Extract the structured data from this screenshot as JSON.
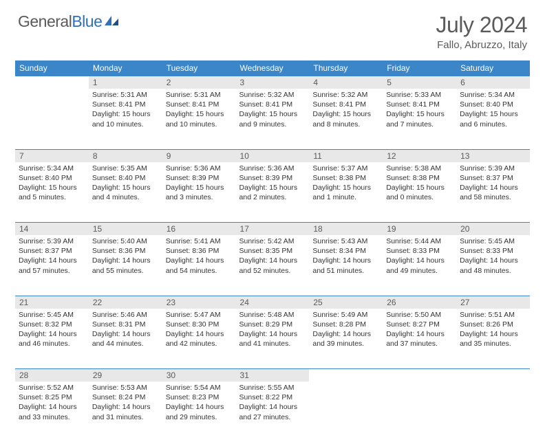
{
  "brand": {
    "part1": "General",
    "part2": "Blue"
  },
  "title": "July 2024",
  "location": "Fallo, Abruzzo, Italy",
  "colors": {
    "header_bg": "#3a86c8",
    "header_text": "#ffffff",
    "daynum_bg": "#e8e8e8",
    "text": "#333333",
    "muted": "#5a5a5a",
    "border": "#3a86c8",
    "brand_blue": "#2f70b8"
  },
  "weekdays": [
    "Sunday",
    "Monday",
    "Tuesday",
    "Wednesday",
    "Thursday",
    "Friday",
    "Saturday"
  ],
  "layout": {
    "first_day_column": 1,
    "days_in_month": 31
  },
  "days": {
    "1": {
      "sunrise": "5:31 AM",
      "sunset": "8:41 PM",
      "daylight": "15 hours and 10 minutes."
    },
    "2": {
      "sunrise": "5:31 AM",
      "sunset": "8:41 PM",
      "daylight": "15 hours and 10 minutes."
    },
    "3": {
      "sunrise": "5:32 AM",
      "sunset": "8:41 PM",
      "daylight": "15 hours and 9 minutes."
    },
    "4": {
      "sunrise": "5:32 AM",
      "sunset": "8:41 PM",
      "daylight": "15 hours and 8 minutes."
    },
    "5": {
      "sunrise": "5:33 AM",
      "sunset": "8:41 PM",
      "daylight": "15 hours and 7 minutes."
    },
    "6": {
      "sunrise": "5:34 AM",
      "sunset": "8:40 PM",
      "daylight": "15 hours and 6 minutes."
    },
    "7": {
      "sunrise": "5:34 AM",
      "sunset": "8:40 PM",
      "daylight": "15 hours and 5 minutes."
    },
    "8": {
      "sunrise": "5:35 AM",
      "sunset": "8:40 PM",
      "daylight": "15 hours and 4 minutes."
    },
    "9": {
      "sunrise": "5:36 AM",
      "sunset": "8:39 PM",
      "daylight": "15 hours and 3 minutes."
    },
    "10": {
      "sunrise": "5:36 AM",
      "sunset": "8:39 PM",
      "daylight": "15 hours and 2 minutes."
    },
    "11": {
      "sunrise": "5:37 AM",
      "sunset": "8:38 PM",
      "daylight": "15 hours and 1 minute."
    },
    "12": {
      "sunrise": "5:38 AM",
      "sunset": "8:38 PM",
      "daylight": "15 hours and 0 minutes."
    },
    "13": {
      "sunrise": "5:39 AM",
      "sunset": "8:37 PM",
      "daylight": "14 hours and 58 minutes."
    },
    "14": {
      "sunrise": "5:39 AM",
      "sunset": "8:37 PM",
      "daylight": "14 hours and 57 minutes."
    },
    "15": {
      "sunrise": "5:40 AM",
      "sunset": "8:36 PM",
      "daylight": "14 hours and 55 minutes."
    },
    "16": {
      "sunrise": "5:41 AM",
      "sunset": "8:36 PM",
      "daylight": "14 hours and 54 minutes."
    },
    "17": {
      "sunrise": "5:42 AM",
      "sunset": "8:35 PM",
      "daylight": "14 hours and 52 minutes."
    },
    "18": {
      "sunrise": "5:43 AM",
      "sunset": "8:34 PM",
      "daylight": "14 hours and 51 minutes."
    },
    "19": {
      "sunrise": "5:44 AM",
      "sunset": "8:33 PM",
      "daylight": "14 hours and 49 minutes."
    },
    "20": {
      "sunrise": "5:45 AM",
      "sunset": "8:33 PM",
      "daylight": "14 hours and 48 minutes."
    },
    "21": {
      "sunrise": "5:45 AM",
      "sunset": "8:32 PM",
      "daylight": "14 hours and 46 minutes."
    },
    "22": {
      "sunrise": "5:46 AM",
      "sunset": "8:31 PM",
      "daylight": "14 hours and 44 minutes."
    },
    "23": {
      "sunrise": "5:47 AM",
      "sunset": "8:30 PM",
      "daylight": "14 hours and 42 minutes."
    },
    "24": {
      "sunrise": "5:48 AM",
      "sunset": "8:29 PM",
      "daylight": "14 hours and 41 minutes."
    },
    "25": {
      "sunrise": "5:49 AM",
      "sunset": "8:28 PM",
      "daylight": "14 hours and 39 minutes."
    },
    "26": {
      "sunrise": "5:50 AM",
      "sunset": "8:27 PM",
      "daylight": "14 hours and 37 minutes."
    },
    "27": {
      "sunrise": "5:51 AM",
      "sunset": "8:26 PM",
      "daylight": "14 hours and 35 minutes."
    },
    "28": {
      "sunrise": "5:52 AM",
      "sunset": "8:25 PM",
      "daylight": "14 hours and 33 minutes."
    },
    "29": {
      "sunrise": "5:53 AM",
      "sunset": "8:24 PM",
      "daylight": "14 hours and 31 minutes."
    },
    "30": {
      "sunrise": "5:54 AM",
      "sunset": "8:23 PM",
      "daylight": "14 hours and 29 minutes."
    },
    "31": {
      "sunrise": "5:55 AM",
      "sunset": "8:22 PM",
      "daylight": "14 hours and 27 minutes."
    }
  },
  "labels": {
    "sunrise": "Sunrise:",
    "sunset": "Sunset:",
    "daylight": "Daylight:"
  }
}
